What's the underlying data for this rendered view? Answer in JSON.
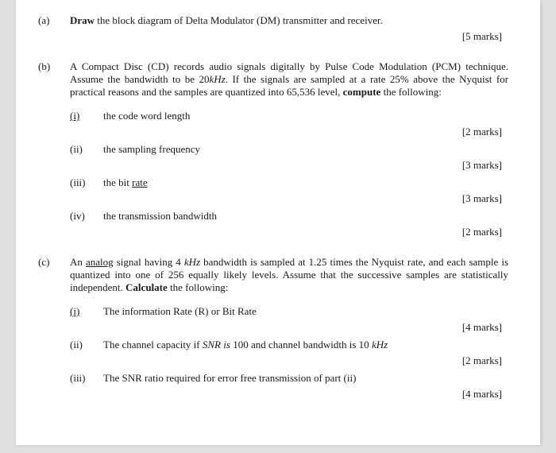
{
  "a": {
    "label": "(a)",
    "lead_bold": "Draw",
    "rest": " the block diagram of Delta Modulator (DM) transmitter and receiver.",
    "marks": "[5 marks]"
  },
  "b": {
    "label": "(b)",
    "p1a": "A Compact Disc (CD) records audio signals digitally by Pulse Code Modulation (PCM) technique. Assume the bandwidth to be 20",
    "p1b": "kHz",
    "p1c": ". If the signals are sampled at a rate 25% above the Nyquist for practical reasons and the samples are quantized into 65,536 level, ",
    "p1d": "compute",
    "p1e": " the following:",
    "i": {
      "label": "(i)",
      "text": "the code word length",
      "marks": "[2 marks]"
    },
    "ii": {
      "label": "(ii)",
      "text": "the sampling frequency",
      "marks": "[3 marks]"
    },
    "iii": {
      "label": "(iii)",
      "text_a": "the bit ",
      "text_b": "rate",
      "marks": "[3 marks]"
    },
    "iv": {
      "label": "(iv)",
      "text": "the transmission bandwidth",
      "marks": "[2 marks]"
    }
  },
  "c": {
    "label": "(c)",
    "p1a": "An ",
    "p1b": "analog",
    "p1c": " signal having 4 ",
    "p1d": "kHz",
    "p1e": " bandwidth is sampled at 1.25 times the Nyquist rate, and each sample is quantized into one of 256 equally likely levels. Assume that the successive samples are statistically independent.  ",
    "p1f": "Calculate",
    "p1g": " the following:",
    "i": {
      "label": "(i)",
      "text": "The information Rate (R) or Bit Rate",
      "marks": "[4 marks]"
    },
    "ii": {
      "label": "(ii)",
      "text_a": "The channel capacity if ",
      "text_b": "SNR is",
      "text_c": " 100 and channel bandwidth is 10 ",
      "text_d": "kHz",
      "marks": "[2 marks]"
    },
    "iii": {
      "label": "(iii)",
      "text": "The SNR ratio required for error free transmission of part (ii)",
      "marks": "[4 marks]"
    }
  }
}
